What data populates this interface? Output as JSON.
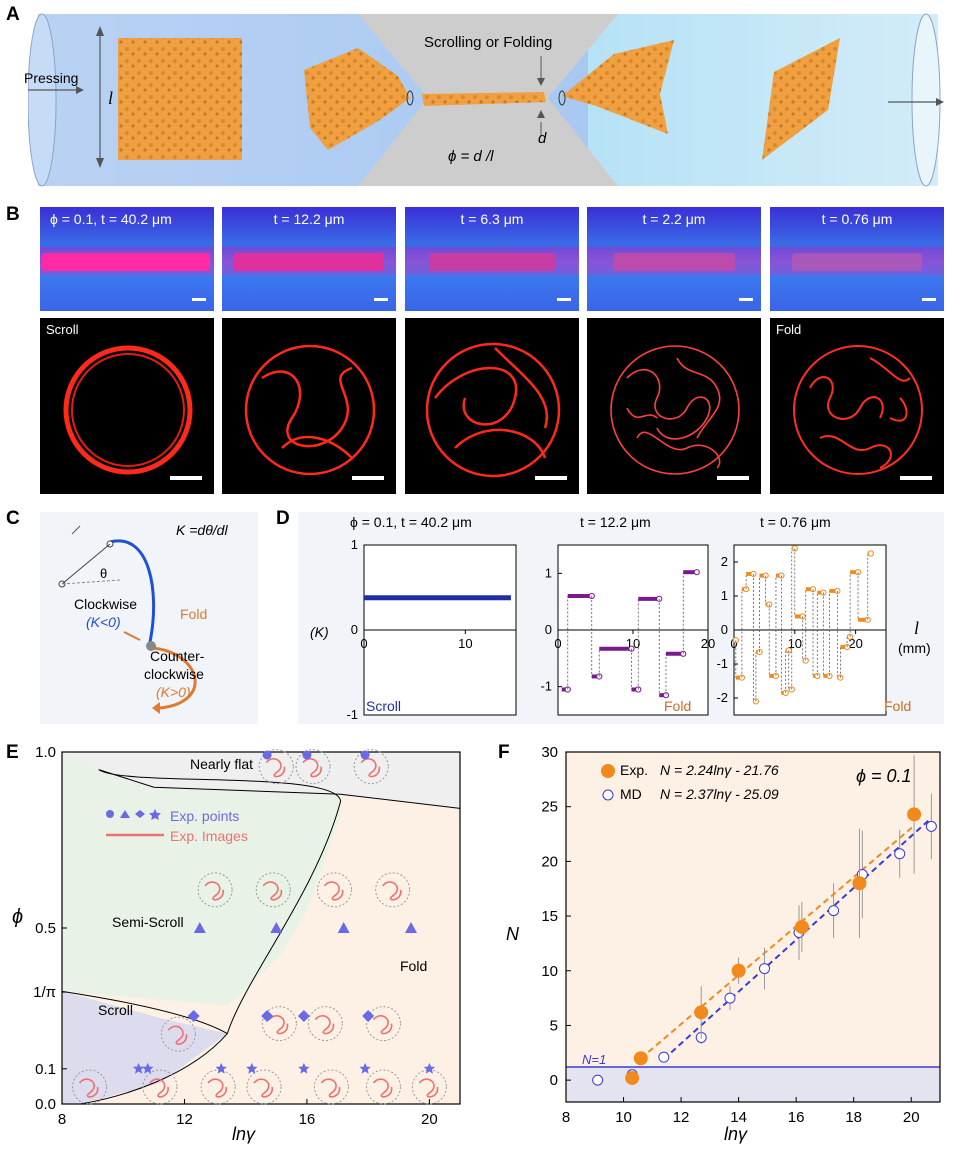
{
  "panel_letters": {
    "a": "A",
    "b": "B",
    "c": "C",
    "d": "D",
    "e": "E",
    "f": "F"
  },
  "panel_a": {
    "pressing": "Pressing",
    "length_symbol": "l",
    "scrolling": "Scrolling or Folding",
    "d_symbol": "d",
    "phi_eq": "ϕ = d /l"
  },
  "panel_b": {
    "top_labels": [
      "ϕ = 0.1,  t = 40.2 μm",
      "t = 12.2 μm",
      "t = 6.3 μm",
      "t = 2.2 μm",
      "t = 0.76 μm"
    ],
    "bottom_labels": [
      "Scroll",
      "",
      "",
      "",
      "Fold"
    ]
  },
  "panel_c": {
    "k_eq": "K =dθ/dl",
    "theta": "θ",
    "clockwise": "Clockwise",
    "k_neg": "(K<0)",
    "fold": "Fold",
    "counter1": "Counter-",
    "counter2": "clockwise",
    "k_pos": "(K>0)",
    "colors": {
      "clockwise": "#1f4fd6",
      "counter": "#e07a30"
    }
  },
  "panel_d": {
    "titles": [
      "ϕ = 0.1,  t = 40.2 μm",
      "t = 12.2 μm",
      "t = 0.76 μm"
    ],
    "ylabel": "(K)",
    "xlabel_symbol": "l",
    "xlabel_unit": "(mm)",
    "subplot_labels": [
      "Scroll",
      "Fold",
      "Fold"
    ]
  },
  "panel_e": {
    "regions": {
      "nearly_flat": "Nearly flat",
      "semi_scroll": "Semi-Scroll",
      "scroll": "Scroll",
      "fold": "Fold"
    },
    "legend_points": "Exp. points",
    "legend_images": "Exp. Images",
    "ylabel": "ϕ",
    "xlabel": "lnγ",
    "yticks": [
      "0.0",
      "0.1",
      "1/π",
      "0.5",
      "1.0"
    ],
    "xticks": [
      "8",
      "12",
      "16",
      "20"
    ],
    "colors": {
      "scroll": "#dcdcee",
      "semi_scroll": "#e8f2e6",
      "fold": "#fdf1e6",
      "flat": "#efefef",
      "points": "#6a6ae6"
    }
  },
  "chart_data": [
    {
      "type": "line",
      "title": "ϕ = 0.1,  t = 40.2 μm",
      "ylabel": "(K)",
      "xlabel": "l (mm)",
      "xlim": [
        0,
        15
      ],
      "ylim": [
        -1,
        1
      ],
      "series": [
        {
          "x": [
            0,
            14.5
          ],
          "y": [
            0.38,
            0.38
          ]
        }
      ]
    },
    {
      "type": "line",
      "title": "t = 12.2 μm",
      "xlim": [
        0,
        20
      ],
      "ylim": [
        -1.5,
        1.5
      ],
      "segments": [
        {
          "x0": 0.5,
          "x1": 1.3,
          "y": -1.05
        },
        {
          "x0": 1.3,
          "x1": 4.5,
          "y": 0.6
        },
        {
          "x0": 4.5,
          "x1": 5.5,
          "y": -0.82
        },
        {
          "x0": 5.5,
          "x1": 9.8,
          "y": -0.33
        },
        {
          "x0": 9.8,
          "x1": 10.7,
          "y": -1.05
        },
        {
          "x0": 10.7,
          "x1": 13.5,
          "y": 0.55
        },
        {
          "x0": 13.5,
          "x1": 14.4,
          "y": -1.15
        },
        {
          "x0": 14.4,
          "x1": 16.7,
          "y": -0.42
        },
        {
          "x0": 16.7,
          "x1": 18.5,
          "y": 1.02
        }
      ]
    },
    {
      "type": "line",
      "title": "t = 0.76 μm",
      "xlim": [
        0,
        25
      ],
      "ylim": [
        -2.5,
        2.5
      ],
      "segments": [
        {
          "x0": 0.0,
          "x1": 0.3,
          "y": -0.3
        },
        {
          "x0": 0.3,
          "x1": 1.3,
          "y": -1.4
        },
        {
          "x0": 1.3,
          "x1": 2.0,
          "y": 1.2
        },
        {
          "x0": 2.0,
          "x1": 3.2,
          "y": 1.65
        },
        {
          "x0": 3.2,
          "x1": 3.6,
          "y": -2.1
        },
        {
          "x0": 3.6,
          "x1": 4.2,
          "y": -0.65
        },
        {
          "x0": 4.2,
          "x1": 5.2,
          "y": 1.6
        },
        {
          "x0": 5.2,
          "x1": 5.8,
          "y": 0.75
        },
        {
          "x0": 5.8,
          "x1": 6.9,
          "y": -1.35
        },
        {
          "x0": 6.9,
          "x1": 7.8,
          "y": 1.6
        },
        {
          "x0": 7.8,
          "x1": 8.5,
          "y": -1.85
        },
        {
          "x0": 8.5,
          "x1": 9.0,
          "y": -0.6
        },
        {
          "x0": 9.0,
          "x1": 9.5,
          "y": -1.75
        },
        {
          "x0": 9.5,
          "x1": 10.0,
          "y": 2.4
        },
        {
          "x0": 10.0,
          "x1": 11.3,
          "y": 0.4
        },
        {
          "x0": 11.3,
          "x1": 11.8,
          "y": -0.9
        },
        {
          "x0": 11.8,
          "x1": 13.0,
          "y": 1.2
        },
        {
          "x0": 13.0,
          "x1": 13.7,
          "y": -1.35
        },
        {
          "x0": 13.7,
          "x1": 14.7,
          "y": 1.1
        },
        {
          "x0": 14.7,
          "x1": 15.7,
          "y": -1.35
        },
        {
          "x0": 15.7,
          "x1": 17.0,
          "y": 1.15
        },
        {
          "x0": 17.0,
          "x1": 17.5,
          "y": -1.4
        },
        {
          "x0": 17.5,
          "x1": 18.6,
          "y": -0.5
        },
        {
          "x0": 18.6,
          "x1": 19.1,
          "y": -0.2
        },
        {
          "x0": 19.1,
          "x1": 20.4,
          "y": 1.7
        },
        {
          "x0": 20.4,
          "x1": 22.0,
          "y": 0.3
        },
        {
          "x0": 22.0,
          "x1": 22.5,
          "y": 2.25
        }
      ]
    },
    {
      "type": "scatter",
      "ylabel": "ϕ",
      "xlabel": "lnγ",
      "xlim": [
        8,
        21
      ],
      "ylim": [
        0,
        1
      ],
      "series": [
        {
          "name": "stars",
          "x": [
            10.5,
            10.8,
            13.2,
            14.2,
            15.9,
            17.9,
            20.0
          ],
          "y": [
            0.1,
            0.1,
            0.1,
            0.1,
            0.1,
            0.1,
            0.1
          ]
        },
        {
          "name": "diamonds",
          "x": [
            12.3,
            14.7,
            15.9,
            18.0
          ],
          "y": [
            0.25,
            0.25,
            0.25,
            0.25
          ]
        },
        {
          "name": "triangles",
          "x": [
            12.5,
            15.0,
            17.2,
            19.4
          ],
          "y": [
            0.5,
            0.5,
            0.5,
            0.5
          ]
        },
        {
          "name": "circles",
          "x": [
            14.7,
            16.0,
            17.9
          ],
          "y": [
            1.0,
            1.0,
            1.0
          ]
        }
      ]
    },
    {
      "type": "scatter",
      "xlabel": "lnγ",
      "ylabel": "N",
      "xlim": [
        8,
        21
      ],
      "ylim": [
        -2,
        30
      ],
      "annotation": "ϕ = 0.1",
      "hline_label": "N=1",
      "series": [
        {
          "name": "Exp.",
          "fit": "N = 2.24lnγ - 21.76",
          "x": [
            10.3,
            10.6,
            12.7,
            14.0,
            16.2,
            18.2,
            20.1
          ],
          "y": [
            0.2,
            2.0,
            6.2,
            10.0,
            14.0,
            18.0,
            24.3
          ],
          "err": [
            0.3,
            0.5,
            2.4,
            1.2,
            2.3,
            5.0,
            5.4
          ]
        },
        {
          "name": "MD",
          "fit": "N = 2.37lnγ - 25.09",
          "x": [
            9.1,
            10.3,
            11.4,
            12.7,
            13.7,
            14.9,
            16.1,
            17.3,
            18.3,
            19.6,
            20.7
          ],
          "y": [
            0.0,
            0.5,
            2.1,
            3.9,
            7.5,
            10.2,
            13.5,
            15.5,
            18.8,
            20.7,
            23.2
          ],
          "err": [
            0,
            0,
            0,
            0.6,
            1.1,
            1.9,
            2.5,
            2.5,
            4.0,
            2.2,
            3.0
          ]
        }
      ],
      "xticks": [
        "8",
        "10",
        "12",
        "14",
        "16",
        "18",
        "20"
      ],
      "yticks": [
        "0",
        "5",
        "10",
        "15",
        "20",
        "25",
        "30"
      ],
      "colors": {
        "exp": "#f08a1c",
        "md": "#3a3ad6"
      }
    }
  ]
}
